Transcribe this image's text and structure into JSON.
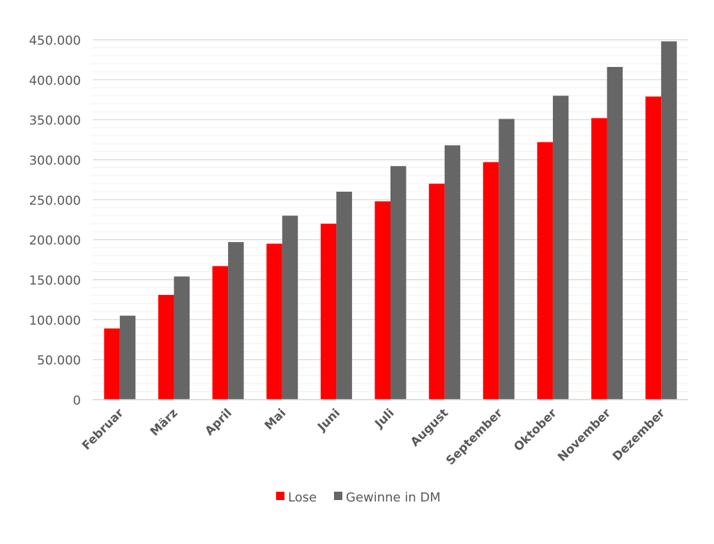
{
  "chart_data": {
    "type": "bar",
    "categories": [
      "Februar",
      "März",
      "April",
      "Mai",
      "Juni",
      "Juli",
      "August",
      "September",
      "Oktober",
      "November",
      "Dezember"
    ],
    "series": [
      {
        "name": "Lose",
        "color": "#ff0000",
        "values": [
          89000,
          131000,
          167000,
          195000,
          220000,
          248000,
          270000,
          297000,
          322000,
          352000,
          379000
        ]
      },
      {
        "name": "Gewinne in DM",
        "color": "#666666",
        "values": [
          105000,
          154000,
          197000,
          230000,
          260000,
          292000,
          318000,
          351000,
          380000,
          416000,
          448000
        ]
      }
    ],
    "ylim": [
      0,
      450000
    ],
    "yticks": [
      {
        "value": 0,
        "label": "0"
      },
      {
        "value": 50000,
        "label": "50.000"
      },
      {
        "value": 100000,
        "label": "100.000"
      },
      {
        "value": 150000,
        "label": "150.000"
      },
      {
        "value": 200000,
        "label": "200.000"
      },
      {
        "value": 250000,
        "label": "250.000"
      },
      {
        "value": 300000,
        "label": "300.000"
      },
      {
        "value": 350000,
        "label": "350.000"
      },
      {
        "value": 400000,
        "label": "400.000"
      },
      {
        "value": 450000,
        "label": "450.000"
      }
    ],
    "grid": true,
    "legend": "bottom-center",
    "title": "",
    "xlabel": "",
    "ylabel": ""
  }
}
